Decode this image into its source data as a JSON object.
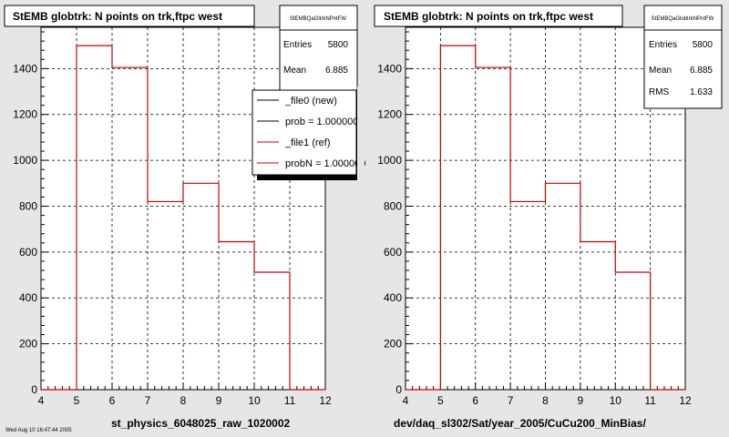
{
  "panels": [
    {
      "title": "StEMB globtrk: N points on trk,ftpc west",
      "xlabel": "st_physics_6048025_raw_1020002",
      "stats": {
        "name": "StEMBQaGltrkNPntFW",
        "rows": [
          {
            "label": "Entries",
            "value": "5800"
          },
          {
            "label": "Mean",
            "value": "6.885"
          }
        ]
      },
      "legend": [
        {
          "label": "_file0 (new)",
          "color": "#000000"
        },
        {
          "label": "prob = 1.000000",
          "color": "#000000"
        },
        {
          "label": "_file1 (ref)",
          "color": "#cc0000"
        },
        {
          "label": "probN = 1.000000",
          "color": "#cc0000"
        }
      ]
    },
    {
      "title": "StEMB globtrk: N points on trk,ftpc west",
      "xlabel": "dev/daq_sl302/Sat/year_2005/CuCu200_MinBias/",
      "stats": {
        "name": "StEMBQaGlobtrkNPntFW",
        "rows": [
          {
            "label": "Entries",
            "value": "5800"
          },
          {
            "label": "Mean",
            "value": "6.885"
          },
          {
            "label": "RMS",
            "value": "1.633"
          }
        ]
      },
      "legend": []
    }
  ],
  "footer": "Wed Aug 10 16:47:44 2005",
  "colors": {
    "histogram": "#cc0000",
    "background": "#e6e6e6",
    "frame": "#ffffff"
  },
  "chart_data": [
    {
      "type": "bar",
      "title": "StEMB globtrk: N points on trk,ftpc west",
      "xlabel": "st_physics_6048025_raw_1020002",
      "ylabel": "",
      "xlim": [
        4,
        12
      ],
      "ylim": [
        0,
        1580
      ],
      "xticks": [
        4,
        5,
        6,
        7,
        8,
        9,
        10,
        11,
        12
      ],
      "yticks": [
        0,
        200,
        400,
        600,
        800,
        1000,
        1200,
        1400
      ],
      "bin_edges": [
        4,
        5,
        6,
        7,
        8,
        9,
        10,
        11,
        12
      ],
      "series": [
        {
          "name": "_file1 (ref)",
          "values": [
            0,
            1500,
            1405,
            820,
            900,
            645,
            512,
            0
          ]
        }
      ],
      "grid": true,
      "legend_position": "top-right"
    },
    {
      "type": "bar",
      "title": "StEMB globtrk: N points on trk,ftpc west",
      "xlabel": "dev/daq_sl302/Sat/year_2005/CuCu200_MinBias/",
      "ylabel": "",
      "xlim": [
        4,
        12
      ],
      "ylim": [
        0,
        1580
      ],
      "xticks": [
        4,
        5,
        6,
        7,
        8,
        9,
        10,
        11,
        12
      ],
      "yticks": [
        0,
        200,
        400,
        600,
        800,
        1000,
        1200,
        1400
      ],
      "bin_edges": [
        4,
        5,
        6,
        7,
        8,
        9,
        10,
        11,
        12
      ],
      "series": [
        {
          "name": "",
          "values": [
            0,
            1500,
            1405,
            820,
            900,
            645,
            512,
            0
          ]
        }
      ],
      "grid": true,
      "legend_position": "none"
    }
  ]
}
